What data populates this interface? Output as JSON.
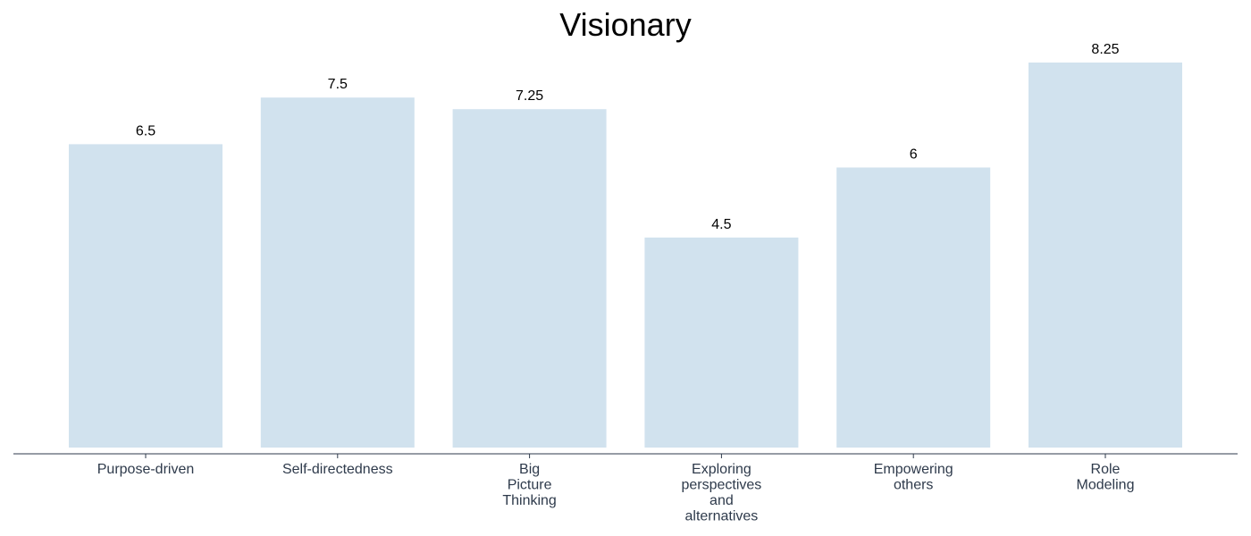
{
  "chart_data": {
    "type": "bar",
    "title": "Visionary",
    "categories": [
      [
        "Purpose-driven"
      ],
      [
        "Self-directedness"
      ],
      [
        "Big",
        "Picture",
        "Thinking"
      ],
      [
        "Exploring",
        "perspectives",
        "and",
        "alternatives"
      ],
      [
        "Empowering",
        "others"
      ],
      [
        "Role",
        "Modeling"
      ]
    ],
    "values": [
      6.5,
      7.5,
      7.25,
      4.5,
      6,
      8.25
    ],
    "value_labels": [
      "6.5",
      "7.5",
      "7.25",
      "4.5",
      "6",
      "8.25"
    ],
    "ylim": [
      0,
      8.25
    ],
    "grid": false,
    "show_y_axis": false,
    "colors": {
      "bar": "#d1e2ee",
      "axis": "#2e3a4b",
      "tick_label": "#2e3a4b",
      "value_label": "#000000",
      "title": "#000000"
    }
  }
}
